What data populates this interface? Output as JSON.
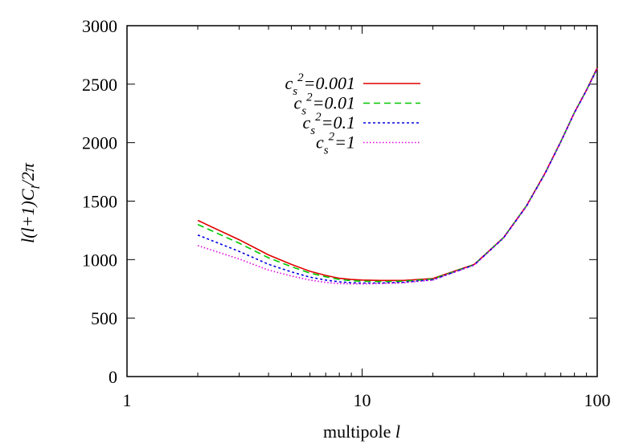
{
  "chart_data": {
    "type": "line",
    "xscale": "log",
    "xlim": [
      1,
      100
    ],
    "ylim": [
      0,
      3000
    ],
    "xticks": [
      {
        "value": 1,
        "label": "1"
      },
      {
        "value": 10,
        "label": "10"
      },
      {
        "value": 100,
        "label": "100"
      }
    ],
    "yticks": [
      {
        "value": 0,
        "label": "0"
      },
      {
        "value": 500,
        "label": "500"
      },
      {
        "value": 1000,
        "label": "1000"
      },
      {
        "value": 1500,
        "label": "1500"
      },
      {
        "value": 2000,
        "label": "2000"
      },
      {
        "value": 2500,
        "label": "2500"
      },
      {
        "value": 3000,
        "label": "3000"
      }
    ],
    "xlabel": {
      "main": "multipole ",
      "var": "l"
    },
    "ylabel": {
      "text": "l(l+1)C",
      "sub": "l",
      "tail": "/2π"
    },
    "legend_position": "top-center",
    "grid": false,
    "series": [
      {
        "name": "c_s^2=0.001",
        "label": {
          "base": "c",
          "sub": "s",
          "sup": "2",
          "value": "=0.001"
        },
        "color": "#e00000",
        "dash": "solid",
        "x": [
          2,
          3,
          4,
          5,
          6,
          7,
          8,
          9,
          10,
          12,
          15,
          20,
          30,
          40,
          50,
          60,
          70,
          80,
          90,
          100
        ],
        "y": [
          1335,
          1170,
          1040,
          960,
          900,
          865,
          840,
          830,
          825,
          822,
          822,
          838,
          960,
          1190,
          1460,
          1740,
          2010,
          2260,
          2450,
          2640
        ]
      },
      {
        "name": "c_s^2=0.01",
        "label": {
          "base": "c",
          "sub": "s",
          "sup": "2",
          "value": "=0.01"
        },
        "color": "#00c800",
        "dash": "8,5",
        "x": [
          2,
          3,
          4,
          5,
          6,
          7,
          8,
          9,
          10,
          12,
          15,
          20,
          30,
          40,
          50,
          60,
          70,
          80,
          90,
          100
        ],
        "y": [
          1300,
          1140,
          1015,
          940,
          885,
          853,
          830,
          820,
          815,
          812,
          815,
          834,
          958,
          1188,
          1458,
          1738,
          2008,
          2258,
          2448,
          2635
        ]
      },
      {
        "name": "c_s^2=0.1",
        "label": {
          "base": "c",
          "sub": "s",
          "sup": "2",
          "value": "=0.1"
        },
        "color": "#0000e0",
        "dash": "3,3",
        "x": [
          2,
          3,
          4,
          5,
          6,
          7,
          8,
          9,
          10,
          12,
          15,
          20,
          30,
          40,
          50,
          60,
          70,
          80,
          90,
          100
        ],
        "y": [
          1210,
          1070,
          960,
          895,
          850,
          825,
          810,
          802,
          800,
          800,
          806,
          828,
          955,
          1186,
          1456,
          1736,
          2006,
          2256,
          2446,
          2633
        ]
      },
      {
        "name": "c_s^2=1",
        "label": {
          "base": "c",
          "sub": "s",
          "sup": "2",
          "value": "=1"
        },
        "color": "#e000e0",
        "dash": "1.5,2.5",
        "x": [
          2,
          3,
          4,
          5,
          6,
          7,
          8,
          9,
          10,
          12,
          15,
          20,
          30,
          40,
          50,
          60,
          70,
          80,
          90,
          100
        ],
        "y": [
          1120,
          1005,
          910,
          860,
          825,
          805,
          795,
          792,
          792,
          795,
          802,
          825,
          953,
          1185,
          1455,
          1735,
          2005,
          2255,
          2445,
          2632
        ]
      }
    ]
  }
}
